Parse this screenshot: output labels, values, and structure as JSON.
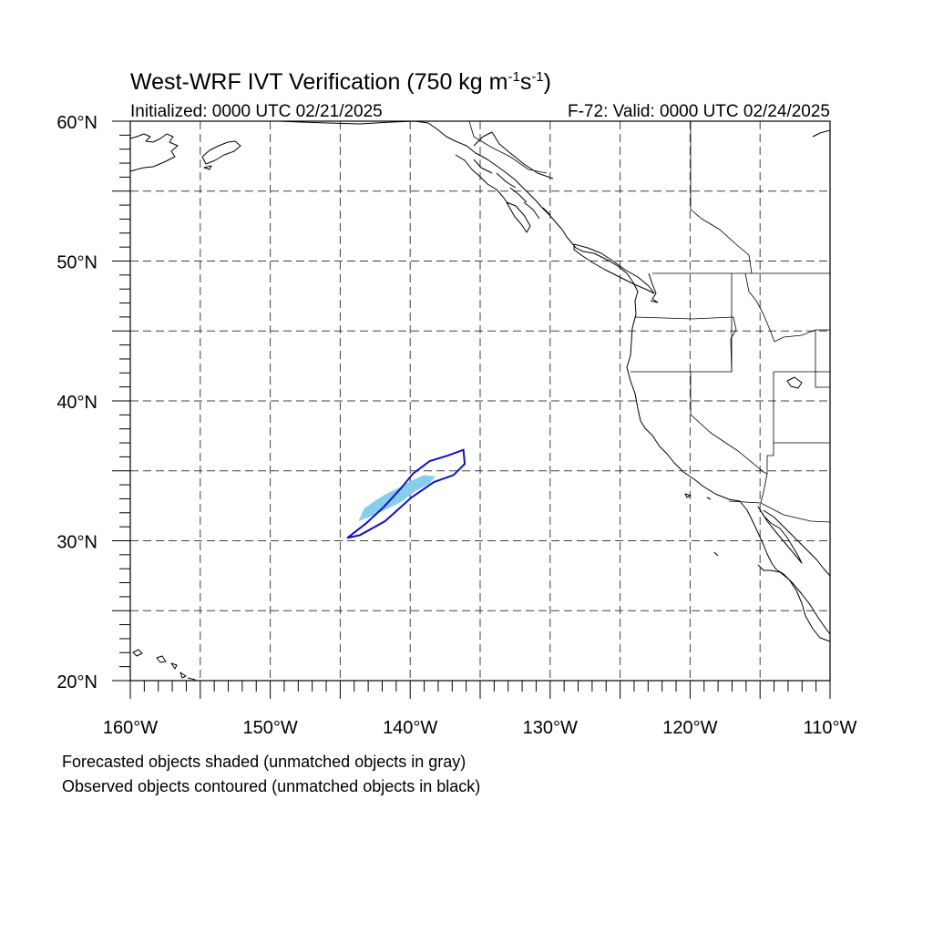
{
  "header": {
    "title_main": "West-WRF IVT Verification (750 kg m",
    "title_sup1": "-1",
    "title_mid": "s",
    "title_sup2": "-1",
    "title_end": ")",
    "initialized": "Initialized: 0000 UTC 02/21/2025",
    "valid": "F-72: Valid: 0000 UTC 02/24/2025"
  },
  "axes": {
    "lon_range": [
      -160,
      -110
    ],
    "lat_range": [
      20,
      60
    ],
    "lon_tick_values": [
      -160,
      -150,
      -140,
      -130,
      -120,
      -110
    ],
    "lon_tick_labels": [
      "160°W",
      "150°W",
      "140°W",
      "130°W",
      "120°W",
      "110°W"
    ],
    "lat_tick_values": [
      20,
      30,
      40,
      50,
      60
    ],
    "lat_tick_labels": [
      "20°N",
      "30°N",
      "40°N",
      "50°N",
      "60°N"
    ],
    "grid_lon_step": 5,
    "grid_lat_step": 5,
    "grid": true
  },
  "colors": {
    "forecast_fill": "#87ceeb",
    "observed_contour": "#1010d0",
    "coastline": "#000000"
  },
  "objects": {
    "forecast": {
      "status": "matched",
      "outline_lonlat": [
        [
          -143.7,
          31.4
        ],
        [
          -143.3,
          32.3
        ],
        [
          -142.6,
          32.8
        ],
        [
          -141.8,
          33.3
        ],
        [
          -140.8,
          33.8
        ],
        [
          -139.9,
          34.3
        ],
        [
          -139.0,
          34.7
        ],
        [
          -138.2,
          34.6
        ],
        [
          -138.6,
          34.1
        ],
        [
          -139.7,
          33.5
        ],
        [
          -140.6,
          32.8
        ],
        [
          -141.8,
          32.2
        ],
        [
          -142.9,
          31.7
        ]
      ]
    },
    "observed": {
      "status": "matched",
      "outline_lonlat": [
        [
          -144.5,
          30.2
        ],
        [
          -143.2,
          31.2
        ],
        [
          -141.9,
          32.4
        ],
        [
          -140.7,
          33.7
        ],
        [
          -139.8,
          34.8
        ],
        [
          -138.6,
          35.7
        ],
        [
          -137.3,
          36.1
        ],
        [
          -136.2,
          36.5
        ],
        [
          -136.1,
          35.5
        ],
        [
          -136.9,
          34.7
        ],
        [
          -138.3,
          34.2
        ],
        [
          -139.9,
          33.1
        ],
        [
          -141.8,
          31.4
        ],
        [
          -143.6,
          30.4
        ]
      ]
    }
  },
  "legend_notes": [
    "Forecasted objects shaded (unmatched objects in gray)",
    "Observed objects contoured (unmatched objects in black)"
  ]
}
